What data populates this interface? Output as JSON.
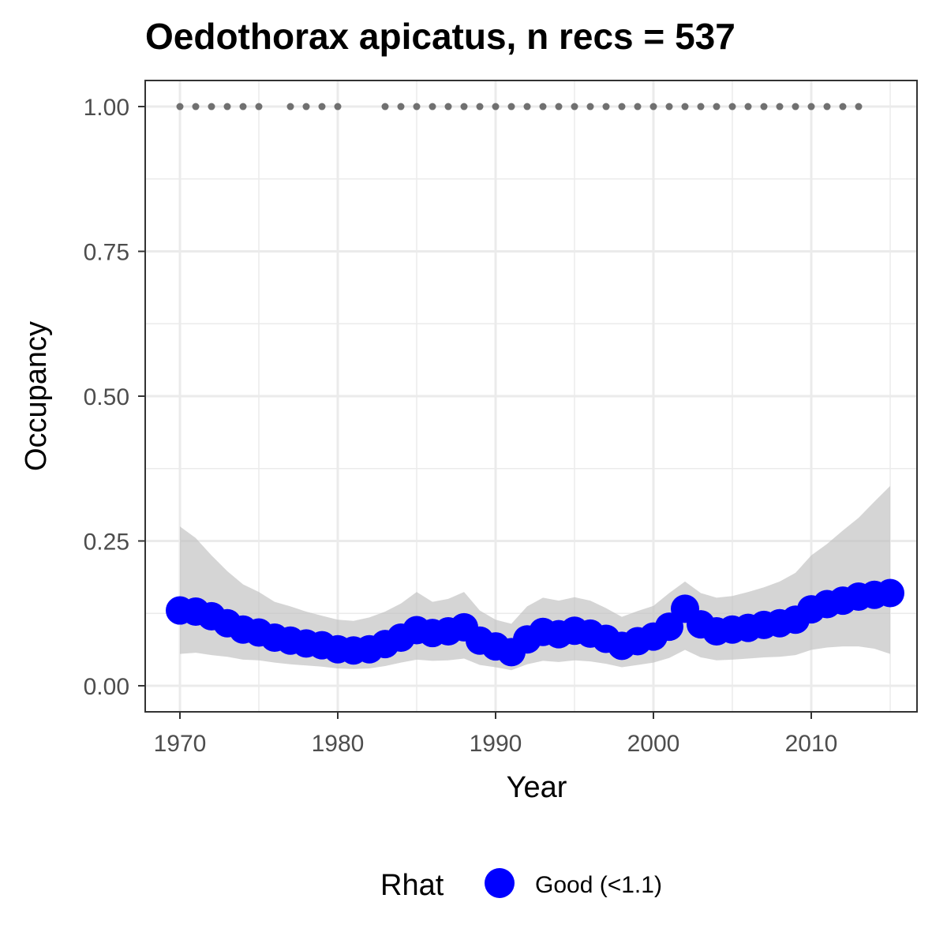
{
  "chart_data": {
    "type": "line",
    "title": "Oedothorax apicatus, n recs = 537",
    "xlabel": "Year",
    "ylabel": "Occupancy",
    "xlim": [
      1967.8,
      1931.0
    ],
    "ylim": [
      -0.045,
      1.045
    ],
    "x_ticks": [
      1970,
      1980,
      1990,
      2000,
      2010
    ],
    "x_tick_labels": [
      "1970",
      "1980",
      "1990",
      "2000",
      "2010"
    ],
    "y_ticks": [
      0,
      0.25,
      0.5,
      0.75,
      1
    ],
    "y_tick_labels": [
      "0.00",
      "0.25",
      "0.50",
      "0.75",
      "1.00"
    ],
    "grid": true,
    "colors": {
      "point": "#0000ff",
      "ribbon": "#bebebe",
      "record_dots": "#707070",
      "grid": "#ebebeb",
      "panel_border": "#333333"
    },
    "series": [
      {
        "x": [
          1970,
          1971,
          1972,
          1973,
          1974,
          1975,
          1976,
          1977,
          1978,
          1979,
          1980,
          1981,
          1982,
          1983,
          1984,
          1985,
          1986,
          1987,
          1988,
          1989,
          1990,
          1991,
          1992,
          1993,
          1994,
          1995,
          1996,
          1997,
          1998,
          1999,
          2000,
          2001,
          2002,
          2003,
          2004,
          2005,
          2006,
          2007,
          2008,
          2009,
          2010,
          2011,
          2012,
          2013,
          2014,
          2015
        ],
        "y": [
          0.13,
          0.128,
          0.12,
          0.108,
          0.097,
          0.092,
          0.083,
          0.078,
          0.073,
          0.07,
          0.063,
          0.061,
          0.063,
          0.072,
          0.083,
          0.096,
          0.091,
          0.094,
          0.101,
          0.078,
          0.068,
          0.058,
          0.08,
          0.093,
          0.089,
          0.095,
          0.09,
          0.081,
          0.069,
          0.077,
          0.085,
          0.102,
          0.133,
          0.106,
          0.094,
          0.097,
          0.1,
          0.105,
          0.108,
          0.114,
          0.132,
          0.141,
          0.147,
          0.154,
          0.157,
          0.16
        ],
        "lower": [
          0.055,
          0.057,
          0.053,
          0.05,
          0.045,
          0.044,
          0.04,
          0.037,
          0.035,
          0.033,
          0.03,
          0.029,
          0.03,
          0.034,
          0.04,
          0.045,
          0.043,
          0.044,
          0.047,
          0.036,
          0.032,
          0.027,
          0.037,
          0.043,
          0.041,
          0.044,
          0.042,
          0.038,
          0.032,
          0.036,
          0.04,
          0.048,
          0.062,
          0.049,
          0.044,
          0.045,
          0.047,
          0.049,
          0.05,
          0.053,
          0.062,
          0.066,
          0.068,
          0.068,
          0.064,
          0.055
        ],
        "upper": [
          0.275,
          0.255,
          0.225,
          0.198,
          0.175,
          0.162,
          0.145,
          0.137,
          0.128,
          0.121,
          0.114,
          0.112,
          0.118,
          0.128,
          0.142,
          0.162,
          0.145,
          0.15,
          0.162,
          0.13,
          0.114,
          0.107,
          0.137,
          0.152,
          0.147,
          0.153,
          0.147,
          0.134,
          0.119,
          0.129,
          0.138,
          0.16,
          0.18,
          0.16,
          0.152,
          0.155,
          0.162,
          0.17,
          0.18,
          0.195,
          0.225,
          0.245,
          0.268,
          0.29,
          0.318,
          0.345
        ]
      }
    ],
    "record_years": [
      1970,
      1971,
      1972,
      1973,
      1974,
      1975,
      1977,
      1978,
      1979,
      1980,
      1983,
      1984,
      1985,
      1986,
      1987,
      1988,
      1989,
      1990,
      1991,
      1992,
      1993,
      1994,
      1995,
      1996,
      1997,
      1998,
      1999,
      2000,
      2001,
      2002,
      2003,
      2004,
      2005,
      2006,
      2007,
      2008,
      2009,
      2010,
      2011,
      2012,
      2013
    ],
    "record_value": 1.0,
    "legend": {
      "position": "bottom",
      "title": "Rhat",
      "items": [
        {
          "label": "Good (<1.1)",
          "color": "#0000ff"
        }
      ]
    }
  }
}
